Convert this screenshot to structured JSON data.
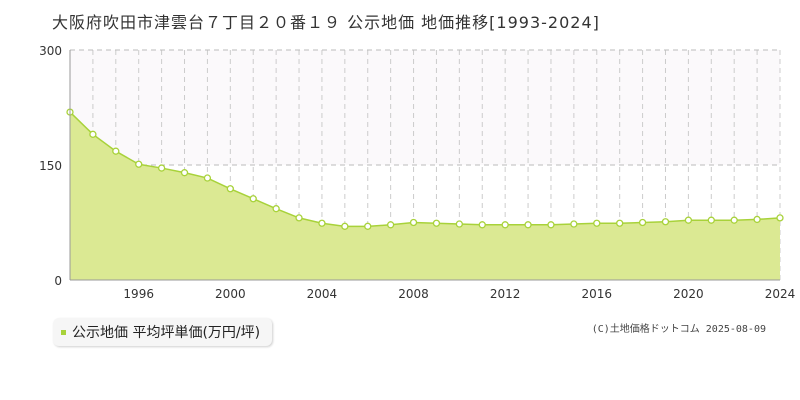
{
  "title": "大阪府吹田市津雲台７丁目２０番１９ 公示地価 地価推移[1993-2024]",
  "legend": {
    "label": "公示地価 平均坪単価(万円/坪)",
    "swatch_color": "#a8d23a"
  },
  "credit": "(C)土地価格ドットコム 2025-08-09",
  "colors": {
    "area_fill": "#dbe993",
    "line": "#a8d23a",
    "band_fill": "#fbf9fb",
    "grid_vertical": "#cccccc",
    "grid_horizontal": "#bbbbbb",
    "axis": "#999999",
    "tick_text": "#333333"
  },
  "chart_data": {
    "type": "area",
    "x": [
      1993,
      1994,
      1995,
      1996,
      1997,
      1998,
      1999,
      2000,
      2001,
      2002,
      2003,
      2004,
      2005,
      2006,
      2007,
      2008,
      2009,
      2010,
      2011,
      2012,
      2013,
      2014,
      2015,
      2016,
      2017,
      2018,
      2019,
      2020,
      2021,
      2022,
      2023,
      2024
    ],
    "series": [
      {
        "values": [
          219,
          190,
          168,
          151,
          146,
          140,
          133,
          119,
          106,
          93,
          81,
          74,
          70,
          70,
          72,
          75,
          74,
          73,
          72,
          72,
          72,
          72,
          73,
          74,
          74,
          75,
          76,
          78,
          78,
          78,
          79,
          81
        ]
      }
    ],
    "xlim": [
      1993,
      2024
    ],
    "ylim": [
      0,
      300
    ],
    "yticks": [
      0,
      150,
      300
    ],
    "xticks": [
      1996,
      2000,
      2004,
      2008,
      2012,
      2016,
      2020,
      2024
    ],
    "grid": {
      "vertical_dashed": true,
      "horizontal_dashed": true
    },
    "upper_band_shaded": true,
    "legend_position": "bottom-left"
  }
}
